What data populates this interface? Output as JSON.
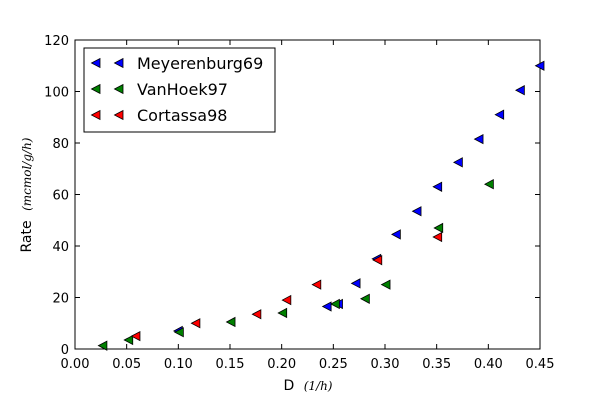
{
  "chart_data": {
    "type": "scatter",
    "title": "",
    "xlabel": "D",
    "xlabel_unit": "(1/h)",
    "ylabel": "Rate",
    "ylabel_unit": "(mcmol/g/h)",
    "xlim": [
      0.0,
      0.45
    ],
    "ylim": [
      0,
      120
    ],
    "x_ticks": [
      "0.00",
      "0.05",
      "0.10",
      "0.15",
      "0.20",
      "0.25",
      "0.30",
      "0.35",
      "0.40",
      "0.45"
    ],
    "y_ticks": [
      "0",
      "20",
      "40",
      "60",
      "80",
      "100",
      "120"
    ],
    "grid": false,
    "legend_position": "top-left",
    "marker": "triangle-left",
    "series": [
      {
        "name": "Meyerenburg69",
        "color": "#0000ff",
        "points": [
          {
            "x": 0.1,
            "y": 7
          },
          {
            "x": 0.244,
            "y": 16.5
          },
          {
            "x": 0.255,
            "y": 17.5
          },
          {
            "x": 0.272,
            "y": 25.5
          },
          {
            "x": 0.292,
            "y": 35
          },
          {
            "x": 0.311,
            "y": 44.5
          },
          {
            "x": 0.331,
            "y": 53.5
          },
          {
            "x": 0.351,
            "y": 63
          },
          {
            "x": 0.371,
            "y": 72.5
          },
          {
            "x": 0.391,
            "y": 81.5
          },
          {
            "x": 0.411,
            "y": 91
          },
          {
            "x": 0.431,
            "y": 100.5
          },
          {
            "x": 0.45,
            "y": 110
          }
        ]
      },
      {
        "name": "VanHoek97",
        "color": "#008000",
        "points": [
          {
            "x": 0.027,
            "y": 1.3
          },
          {
            "x": 0.052,
            "y": 3.5
          },
          {
            "x": 0.101,
            "y": 6.5
          },
          {
            "x": 0.151,
            "y": 10.5
          },
          {
            "x": 0.201,
            "y": 14
          },
          {
            "x": 0.252,
            "y": 17.5
          },
          {
            "x": 0.281,
            "y": 19.5
          },
          {
            "x": 0.301,
            "y": 25
          },
          {
            "x": 0.352,
            "y": 47
          },
          {
            "x": 0.401,
            "y": 64
          }
        ]
      },
      {
        "name": "Cortassa98",
        "color": "#ff0000",
        "points": [
          {
            "x": 0.059,
            "y": 5
          },
          {
            "x": 0.117,
            "y": 10
          },
          {
            "x": 0.176,
            "y": 13.5
          },
          {
            "x": 0.205,
            "y": 19
          },
          {
            "x": 0.234,
            "y": 25
          },
          {
            "x": 0.293,
            "y": 34.5
          },
          {
            "x": 0.351,
            "y": 43.5
          }
        ]
      }
    ]
  }
}
